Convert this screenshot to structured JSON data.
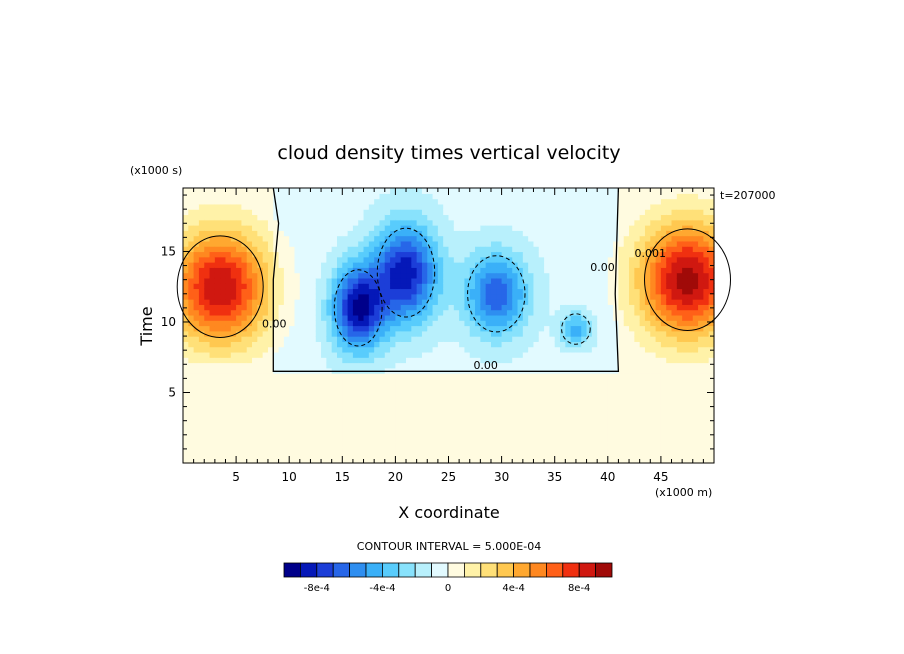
{
  "chart_data": {
    "type": "heatmap",
    "title": "cloud density times vertical velocity",
    "xlabel": "X coordinate",
    "ylabel": "Time",
    "x_units": "(x1000 m)",
    "y_units": "(x1000 s)",
    "time_stamp": "t=207000",
    "xlim": [
      0,
      50
    ],
    "ylim": [
      0,
      19.5
    ],
    "x_ticks": [
      5,
      10,
      15,
      20,
      25,
      30,
      35,
      40,
      45
    ],
    "y_ticks": [
      5,
      10,
      15
    ],
    "contour_interval_text": "CONTOUR INTERVAL = 5.000E-04",
    "contour_labels": [
      {
        "text": "0.00",
        "x": 8.6,
        "y": 9.6
      },
      {
        "text": "0.00",
        "x": 28.5,
        "y": 6.65
      },
      {
        "text": "0.00",
        "x": 39.5,
        "y": 13.6
      },
      {
        "text": "0.001",
        "x": 44.0,
        "y": 14.6
      }
    ],
    "colorbar": {
      "levels": [
        -0.001,
        -0.0009,
        -0.0008,
        -0.0007,
        -0.0006,
        -0.0005,
        -0.0004,
        -0.0003,
        -0.0002,
        -0.0001,
        0,
        0.0001,
        0.0002,
        0.0003,
        0.0004,
        0.0005,
        0.0006,
        0.0007,
        0.0008,
        0.0009,
        0.001
      ],
      "colors": [
        "#00008a",
        "#0518b8",
        "#1c3ed8",
        "#2766e8",
        "#2e8ef0",
        "#3ab0f8",
        "#58ccfc",
        "#88e2fc",
        "#b8f0fc",
        "#e2faff",
        "#fffbe0",
        "#fff2a8",
        "#ffe078",
        "#ffc850",
        "#ffa830",
        "#ff8820",
        "#ff6018",
        "#f03010",
        "#d01810",
        "#a00a08"
      ],
      "tick_labels": [
        {
          "value": -0.0008,
          "text": "-8e-4"
        },
        {
          "value": -0.0004,
          "text": "-4e-4"
        },
        {
          "value": 0,
          "text": "0"
        },
        {
          "value": 0.0004,
          "text": "4e-4"
        },
        {
          "value": 0.0008,
          "text": "8e-4"
        }
      ]
    },
    "field": {
      "background_value": 5e-05,
      "updraft_region": {
        "x": [
          8.5,
          41
        ],
        "t": [
          6.5,
          19.5
        ]
      },
      "features": [
        {
          "kind": "downdraft",
          "x": 16.5,
          "t": 11.0,
          "sx": 2.5,
          "st": 3.0,
          "amp": -0.00085
        },
        {
          "kind": "downdraft",
          "x": 21.0,
          "t": 13.5,
          "sx": 3.0,
          "st": 3.5,
          "amp": -0.0008
        },
        {
          "kind": "downdraft",
          "x": 29.5,
          "t": 12.0,
          "sx": 3.0,
          "st": 3.0,
          "amp": -0.0006
        },
        {
          "kind": "downdraft",
          "x": 37.0,
          "t": 9.5,
          "sx": 1.5,
          "st": 1.2,
          "amp": -0.0004
        },
        {
          "kind": "updraft",
          "x": 3.5,
          "t": 12.5,
          "sx": 4.5,
          "st": 4.0,
          "amp": 0.0009
        },
        {
          "kind": "updraft",
          "x": 47.5,
          "t": 13.0,
          "sx": 4.5,
          "st": 4.0,
          "amp": 0.00095
        }
      ]
    }
  }
}
